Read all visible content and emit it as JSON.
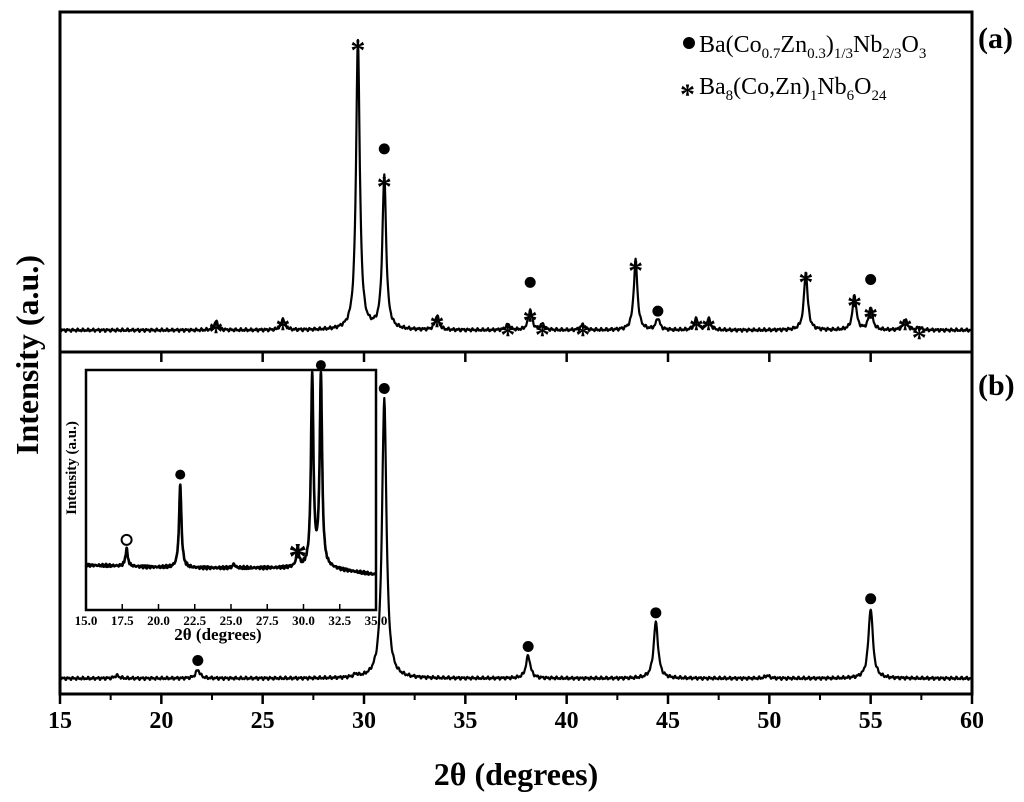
{
  "chart_data": {
    "type": "line",
    "xlabel": "2θ (degrees)",
    "ylabel": "Intensity (a.u.)",
    "xlim": [
      15,
      60
    ],
    "x_ticks": [
      "15",
      "20",
      "25",
      "30",
      "35",
      "40",
      "45",
      "50",
      "55",
      "60"
    ],
    "legend": {
      "position": "top-right",
      "entries": [
        {
          "marker": "filled-circle",
          "parts": [
            "Ba(Co",
            "0.7",
            "Zn",
            "0.3",
            ")",
            "1/3",
            "Nb",
            "2/3",
            "O",
            "3"
          ]
        },
        {
          "marker": "asterisk",
          "parts": [
            "Ba",
            "8",
            "(Co,Zn)",
            "1",
            "Nb",
            "6",
            "O",
            "24"
          ]
        }
      ]
    },
    "panels": [
      {
        "label": "(a)",
        "baseline": 0.02,
        "peaks": [
          {
            "x": 22.7,
            "y": 0.03,
            "marks": [
              "*"
            ]
          },
          {
            "x": 26.0,
            "y": 0.04,
            "marks": [
              "*"
            ]
          },
          {
            "x": 29.7,
            "y": 1.0,
            "marks": [
              "*"
            ]
          },
          {
            "x": 31.0,
            "y": 0.53,
            "marks": [
              "*",
              "●"
            ]
          },
          {
            "x": 33.6,
            "y": 0.05,
            "marks": [
              "*"
            ]
          },
          {
            "x": 37.1,
            "y": 0.02,
            "marks": [
              "*"
            ]
          },
          {
            "x": 38.2,
            "y": 0.07,
            "marks": [
              "*",
              "●"
            ]
          },
          {
            "x": 38.8,
            "y": 0.02,
            "marks": [
              "*"
            ]
          },
          {
            "x": 40.8,
            "y": 0.02,
            "marks": [
              "*"
            ]
          },
          {
            "x": 43.4,
            "y": 0.24,
            "marks": [
              "*"
            ]
          },
          {
            "x": 44.5,
            "y": 0.04,
            "marks": [
              "●"
            ]
          },
          {
            "x": 46.4,
            "y": 0.04,
            "marks": [
              "*"
            ]
          },
          {
            "x": 47.0,
            "y": 0.04,
            "marks": [
              "*"
            ]
          },
          {
            "x": 51.8,
            "y": 0.2,
            "marks": [
              "*"
            ]
          },
          {
            "x": 54.2,
            "y": 0.12,
            "marks": [
              "*"
            ]
          },
          {
            "x": 55.0,
            "y": 0.08,
            "marks": [
              "*",
              "●"
            ]
          },
          {
            "x": 56.7,
            "y": 0.04,
            "marks": [
              "*"
            ]
          },
          {
            "x": 57.4,
            "y": 0.01,
            "marks": [
              "*"
            ]
          }
        ]
      },
      {
        "label": "(b)",
        "baseline": 0.02,
        "peaks": [
          {
            "x": 17.8,
            "y": 0.01,
            "marks": []
          },
          {
            "x": 21.8,
            "y": 0.03,
            "marks": [
              "●"
            ]
          },
          {
            "x": 29.6,
            "y": 0.01,
            "marks": []
          },
          {
            "x": 31.0,
            "y": 1.0,
            "marks": [
              "●"
            ]
          },
          {
            "x": 38.1,
            "y": 0.08,
            "marks": [
              "●"
            ]
          },
          {
            "x": 44.4,
            "y": 0.2,
            "marks": [
              "●"
            ]
          },
          {
            "x": 49.9,
            "y": 0.01,
            "marks": []
          },
          {
            "x": 55.0,
            "y": 0.25,
            "marks": [
              "●"
            ]
          }
        ]
      }
    ],
    "inset": {
      "xlabel": "2θ (degrees)",
      "ylabel": "Intensity (a.u.)",
      "xlim": [
        15.0,
        35.0
      ],
      "x_ticks": [
        "15.0",
        "17.5",
        "20.0",
        "22.5",
        "25.0",
        "27.5",
        "30.0",
        "32.5",
        "35.0"
      ],
      "peaks": [
        {
          "x": 17.8,
          "y": 0.09,
          "marks": [
            "○"
          ]
        },
        {
          "x": 21.5,
          "y": 0.43,
          "marks": [
            "●"
          ]
        },
        {
          "x": 25.2,
          "y": 0.02,
          "marks": []
        },
        {
          "x": 29.6,
          "y": 0.1,
          "marks": [
            "*"
          ]
        },
        {
          "x": 30.6,
          "y": 1.0,
          "marks": []
        },
        {
          "x": 31.2,
          "y": 1.0,
          "marks": [
            "●"
          ]
        }
      ]
    }
  }
}
